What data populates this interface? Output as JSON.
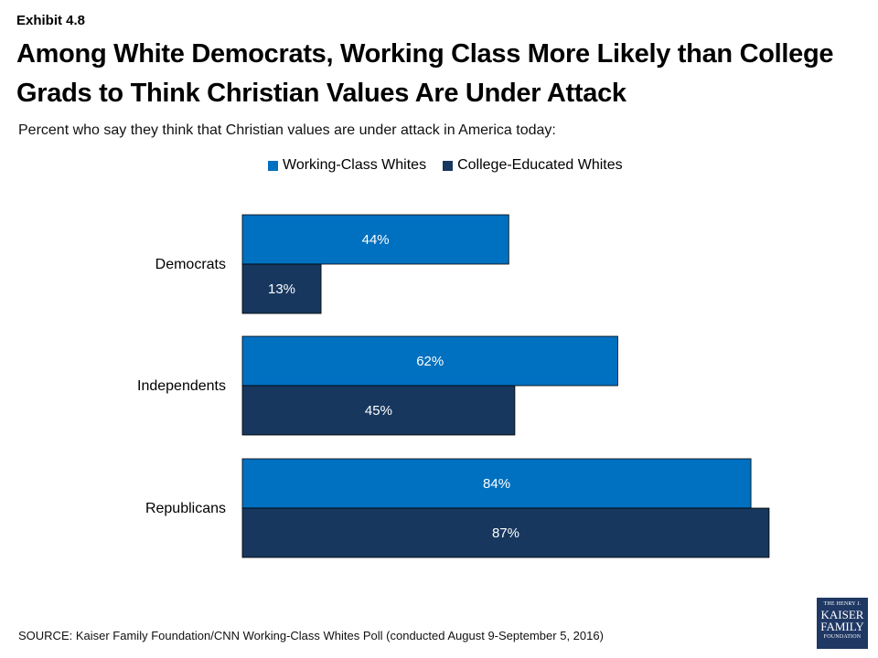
{
  "exhibit": "Exhibit 4.8",
  "title": "Among White Democrats, Working Class More Likely than College Grads to Think Christian Values Are Under Attack",
  "subtitle": "Percent who say they think that Christian values are under attack in America today:",
  "source": "SOURCE: Kaiser Family Foundation/CNN Working-Class Whites Poll (conducted August 9-September 5, 2016)",
  "logo": {
    "line1": "THE HENRY J.",
    "line2": "KAISER",
    "line3": "FAMILY",
    "line4": "FOUNDATION"
  },
  "chart_data": {
    "type": "bar",
    "orientation": "horizontal",
    "categories": [
      "Democrats",
      "Independents",
      "Republicans"
    ],
    "series": [
      {
        "name": "Working-Class Whites",
        "values": [
          44,
          62,
          84
        ],
        "labels": [
          "44%",
          "62%",
          "84%"
        ],
        "color": "#0070c0"
      },
      {
        "name": "College-Educated Whites",
        "values": [
          13,
          45,
          87
        ],
        "labels": [
          "13%",
          "45%",
          "87%"
        ],
        "color": "#17375e"
      }
    ],
    "xlim": [
      0,
      100
    ],
    "grid": false,
    "legend": "top"
  }
}
